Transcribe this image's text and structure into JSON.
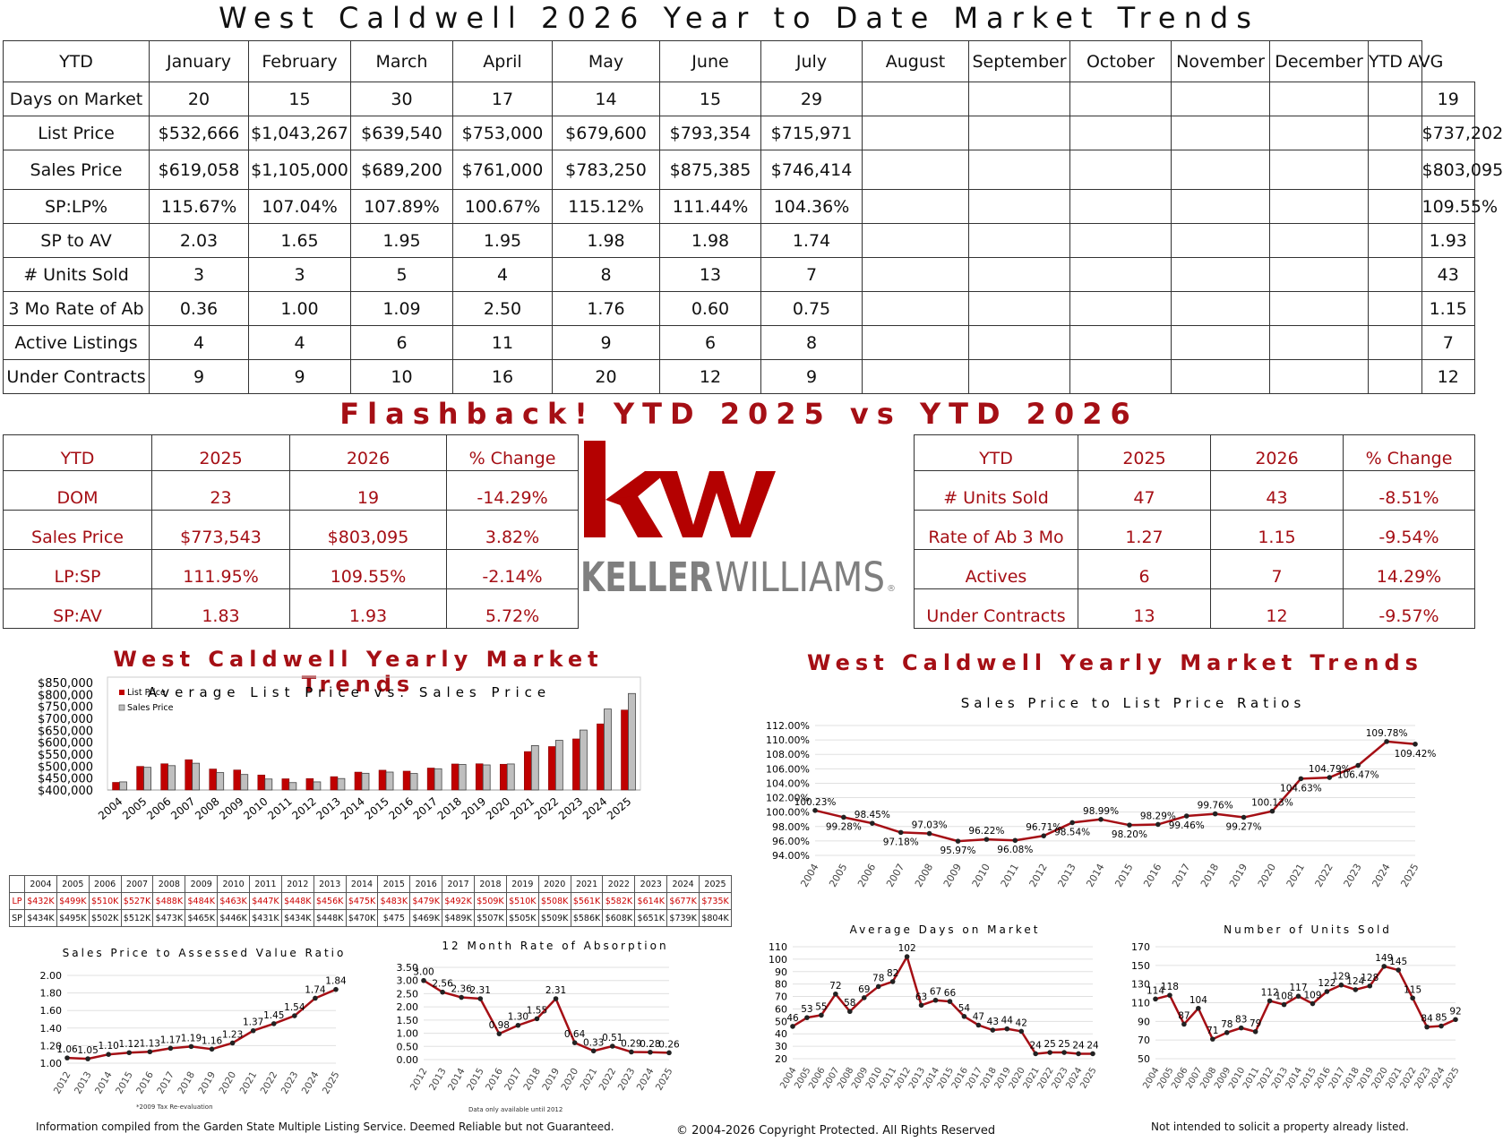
{
  "title": "West Caldwell 2026 Year to Date Market Trends",
  "main_table": {
    "headers": [
      "YTD",
      "January",
      "February",
      "March",
      "April",
      "May",
      "June",
      "July",
      "August",
      "September",
      "October",
      "November",
      "December",
      "YTD AVG"
    ],
    "rows": [
      {
        "label": "Days on Market",
        "values": [
          "20",
          "15",
          "30",
          "17",
          "14",
          "15",
          "29",
          "",
          "",
          "",
          "",
          "",
          ""
        ],
        "avg": "19"
      },
      {
        "label": "List Price",
        "values": [
          "$532,666",
          "$1,043,267",
          "$639,540",
          "$753,000",
          "$679,600",
          "$793,354",
          "$715,971",
          "",
          "",
          "",
          "",
          "",
          ""
        ],
        "avg": "$737,202"
      },
      {
        "label": "Sales Price",
        "values": [
          "$619,058",
          "$1,105,000",
          "$689,200",
          "$761,000",
          "$783,250",
          "$875,385",
          "$746,414",
          "",
          "",
          "",
          "",
          "",
          ""
        ],
        "avg": "$803,095"
      },
      {
        "label": "SP:LP%",
        "values": [
          "115.67%",
          "107.04%",
          "107.89%",
          "100.67%",
          "115.12%",
          "111.44%",
          "104.36%",
          "",
          "",
          "",
          "",
          "",
          ""
        ],
        "avg": "109.55%"
      },
      {
        "label": "SP to AV",
        "values": [
          "2.03",
          "1.65",
          "1.95",
          "1.95",
          "1.98",
          "1.98",
          "1.74",
          "",
          "",
          "",
          "",
          "",
          ""
        ],
        "avg": "1.93"
      },
      {
        "label": "# Units Sold",
        "values": [
          "3",
          "3",
          "5",
          "4",
          "8",
          "13",
          "7",
          "",
          "",
          "",
          "",
          "",
          ""
        ],
        "avg": "43"
      },
      {
        "label": "3 Mo Rate of Ab",
        "values": [
          "0.36",
          "1.00",
          "1.09",
          "2.50",
          "1.76",
          "0.60",
          "0.75",
          "",
          "",
          "",
          "",
          "",
          ""
        ],
        "avg": "1.15"
      },
      {
        "label": "Active Listings",
        "values": [
          "4",
          "4",
          "6",
          "11",
          "9",
          "6",
          "8",
          "",
          "",
          "",
          "",
          "",
          ""
        ],
        "avg": "7"
      },
      {
        "label": "Under Contracts",
        "values": [
          "9",
          "9",
          "10",
          "16",
          "20",
          "12",
          "9",
          "",
          "",
          "",
          "",
          "",
          ""
        ],
        "avg": "12"
      }
    ]
  },
  "flashback": {
    "title": "Flashback!   YTD 2025 vs YTD 2026",
    "left": {
      "headers": [
        "YTD",
        "2025",
        "2026",
        "% Change"
      ],
      "rows": [
        [
          "DOM",
          "23",
          "19",
          "-14.29%"
        ],
        [
          "Sales Price",
          "$773,543",
          "$803,095",
          "3.82%"
        ],
        [
          "LP:SP",
          "111.95%",
          "109.55%",
          "-2.14%"
        ],
        [
          "SP:AV",
          "1.83",
          "1.93",
          "5.72%"
        ]
      ]
    },
    "right": {
      "headers": [
        "YTD",
        "2025",
        "2026",
        "% Change"
      ],
      "rows": [
        [
          "# Units Sold",
          "47",
          "43",
          "-8.51%"
        ],
        [
          "Rate of Ab 3 Mo",
          "1.27",
          "1.15",
          "-9.54%"
        ],
        [
          "Actives",
          "6",
          "7",
          "14.29%"
        ],
        [
          "Under Contracts",
          "13",
          "12",
          "-9.57%"
        ]
      ]
    }
  },
  "logo": {
    "mark": "kw",
    "wordmark_bold": "KELLER",
    "wordmark_light": "WILLIAMS",
    "reg": "®",
    "brand_color": "#b40101",
    "gray": "#7f7f7f"
  },
  "section_titles": {
    "left": "West Caldwell Yearly Market Trends",
    "right": "West Caldwell Yearly Market Trends"
  },
  "lp_sp_table": {
    "years": [
      "2004",
      "2005",
      "2006",
      "2007",
      "2008",
      "2009",
      "2010",
      "2011",
      "2012",
      "2013",
      "2014",
      "2015",
      "2016",
      "2017",
      "2018",
      "2019",
      "2020",
      "2021",
      "2022",
      "2023",
      "2024",
      "2025"
    ],
    "lp_label": "LP",
    "sp_label": "SP",
    "lp": [
      "$432K",
      "$499K",
      "$510K",
      "$527K",
      "$488K",
      "$484K",
      "$463K",
      "$447K",
      "$448K",
      "$456K",
      "$475K",
      "$483K",
      "$479K",
      "$492K",
      "$509K",
      "$510K",
      "$508K",
      "$561K",
      "$582K",
      "$614K",
      "$677K",
      "$735K"
    ],
    "sp": [
      "$434K",
      "$495K",
      "$502K",
      "$512K",
      "$473K",
      "$465K",
      "$446K",
      "$431K",
      "$434K",
      "$448K",
      "$470K",
      "$475",
      "$469K",
      "$489K",
      "$507K",
      "$505K",
      "$509K",
      "$586K",
      "$608K",
      "$651K",
      "$739K",
      "$804K"
    ]
  },
  "chart_data": [
    {
      "type": "bar",
      "title": "Average List Price vs. Sales Price",
      "categories": [
        "2004",
        "2005",
        "2006",
        "2007",
        "2008",
        "2009",
        "2010",
        "2011",
        "2012",
        "2013",
        "2014",
        "2015",
        "2016",
        "2017",
        "2018",
        "2019",
        "2020",
        "2021",
        "2022",
        "2023",
        "2024",
        "2025"
      ],
      "series": [
        {
          "name": "List Price",
          "values": [
            432,
            499,
            510,
            527,
            488,
            484,
            463,
            447,
            448,
            456,
            475,
            483,
            479,
            492,
            509,
            510,
            508,
            561,
            582,
            614,
            677,
            735
          ]
        },
        {
          "name": "Sales Price",
          "values": [
            434,
            495,
            502,
            512,
            473,
            465,
            446,
            431,
            434,
            448,
            470,
            475,
            469,
            489,
            507,
            505,
            509,
            586,
            608,
            651,
            739,
            804
          ]
        }
      ],
      "ylim": [
        400000,
        850000
      ],
      "yticks": [
        "$400,000",
        "$450,000",
        "$500,000",
        "$550,000",
        "$600,000",
        "$650,000",
        "$700,000",
        "$750,000",
        "$800,000",
        "$850,000"
      ],
      "legend": "top-left",
      "colors": {
        "List Price": "#c00000",
        "Sales Price": "#bfbfbf"
      }
    },
    {
      "type": "line",
      "title": "Sales Price to List Price Ratios",
      "categories": [
        "2004",
        "2005",
        "2006",
        "2007",
        "2008",
        "2009",
        "2010",
        "2011",
        "2012",
        "2013",
        "2014",
        "2015",
        "2016",
        "2017",
        "2018",
        "2019",
        "2020",
        "2021",
        "2022",
        "2023",
        "2024",
        "2025"
      ],
      "values": [
        100.23,
        99.28,
        98.45,
        97.18,
        97.03,
        95.97,
        96.22,
        96.08,
        96.71,
        98.54,
        98.99,
        98.2,
        98.29,
        99.46,
        99.76,
        99.27,
        100.13,
        104.63,
        104.79,
        106.47,
        109.78,
        109.42
      ],
      "labels": [
        "100.23%",
        "99.28%",
        "98.45%",
        "97.18%",
        "97.03%",
        "95.97%",
        "96.22%",
        "96.08%",
        "96.71%",
        "98.54%",
        "98.99%",
        "98.20%",
        "98.29%",
        "99.46%",
        "99.76%",
        "99.27%",
        "100.13%",
        "104.63%",
        "104.79%",
        "106.47%",
        "109.78%",
        "109.42%"
      ],
      "ylim": [
        94,
        112
      ],
      "yticks": [
        "94.00%",
        "96.00%",
        "98.00%",
        "100.00%",
        "102.00%",
        "104.00%",
        "106.00%",
        "108.00%",
        "110.00%",
        "112.00%"
      ]
    },
    {
      "type": "line",
      "title": "Sales Price to Assessed Value Ratio",
      "categories": [
        "2012",
        "2013",
        "2014",
        "2015",
        "2016",
        "2017",
        "2018",
        "2019",
        "2020",
        "2021",
        "2022",
        "2023",
        "2024",
        "2025"
      ],
      "values": [
        1.06,
        1.05,
        1.1,
        1.12,
        1.13,
        1.17,
        1.19,
        1.16,
        1.23,
        1.37,
        1.45,
        1.54,
        1.74,
        1.84
      ],
      "labels": [
        "1.06",
        "1.05",
        "1.10",
        "1.12",
        "1.13",
        "1.17",
        "1.19",
        "1.16",
        "1.23",
        "1.37",
        "1.45",
        "1.54",
        "1.74",
        "1.84"
      ],
      "ylim": [
        1,
        2
      ],
      "yticks": [
        "1.00",
        "1.20",
        "1.40",
        "1.60",
        "1.80",
        "2.00"
      ],
      "note": "*2009 Tax Re-evaluation"
    },
    {
      "type": "line",
      "title": "12 Month Rate of Absorption",
      "categories": [
        "2012",
        "2013",
        "2014",
        "2015",
        "2016",
        "2017",
        "2018",
        "2019",
        "2020",
        "2021",
        "2022",
        "2023",
        "2024",
        "2025"
      ],
      "values": [
        3.0,
        2.56,
        2.36,
        2.31,
        0.98,
        1.3,
        1.55,
        2.31,
        0.64,
        0.33,
        0.51,
        0.29,
        0.28,
        0.26
      ],
      "labels": [
        "3.00",
        "2.56",
        "2.36",
        "2.31",
        "0.98",
        "1.30",
        "1.55",
        "2.31",
        "0.64",
        "0.33",
        "0.51",
        "0.29",
        "0.28",
        "0.26"
      ],
      "ylim": [
        0,
        3.5
      ],
      "yticks": [
        "0.00",
        "0.50",
        "1.00",
        "1.50",
        "2.00",
        "2.50",
        "3.00",
        "3.50"
      ],
      "note": "Data only available until 2012"
    },
    {
      "type": "line",
      "title": "Average Days on Market",
      "categories": [
        "2004",
        "2005",
        "2006",
        "2007",
        "2008",
        "2009",
        "2010",
        "2011",
        "2012",
        "2013",
        "2014",
        "2015",
        "2016",
        "2017",
        "2018",
        "2019",
        "2020",
        "2021",
        "2022",
        "2023",
        "2024",
        "2025"
      ],
      "values": [
        46,
        53,
        55,
        72,
        58,
        69,
        78,
        82,
        102,
        63,
        67,
        66,
        54,
        47,
        43,
        44,
        42,
        24,
        25,
        25,
        24,
        24
      ],
      "labels": [
        "46",
        "53",
        "55",
        "72",
        "58",
        "69",
        "78",
        "82",
        "102",
        "63",
        "67",
        "66",
        "54",
        "47",
        "43",
        "44",
        "42",
        "24",
        "25",
        "25",
        "24",
        "24"
      ],
      "ylim": [
        20,
        110
      ],
      "yticks": [
        "20",
        "30",
        "40",
        "50",
        "60",
        "70",
        "80",
        "90",
        "100",
        "110"
      ]
    },
    {
      "type": "line",
      "title": "Number of Units Sold",
      "categories": [
        "2004",
        "2005",
        "2006",
        "2007",
        "2008",
        "2009",
        "2010",
        "2011",
        "2012",
        "2013",
        "2014",
        "2015",
        "2016",
        "2017",
        "2018",
        "2019",
        "2020",
        "2021",
        "2022",
        "2023",
        "2024",
        "2025"
      ],
      "values": [
        114,
        118,
        87,
        104,
        71,
        78,
        83,
        79,
        112,
        108,
        117,
        109,
        122,
        129,
        124,
        128,
        149,
        145,
        115,
        84,
        85,
        92
      ],
      "labels": [
        "114",
        "118",
        "87",
        "104",
        "71",
        "78",
        "83",
        "79",
        "112",
        "108",
        "117",
        "109",
        "122",
        "129",
        "124",
        "128",
        "149",
        "145",
        "115",
        "84",
        "85",
        "92"
      ],
      "ylim": [
        50,
        170
      ],
      "yticks": [
        "50",
        "70",
        "90",
        "110",
        "130",
        "150",
        "170"
      ]
    }
  ],
  "colors": {
    "accent": "#a50f15",
    "line": "#a50f15"
  },
  "footer": {
    "left": "Information compiled from the Garden State Multiple Listing Service.  Deemed Reliable but not Guaranteed.",
    "center": "© 2004-2026 Copyright Protected.  All Rights Reserved",
    "right": "Not intended to solicit a property already listed."
  }
}
